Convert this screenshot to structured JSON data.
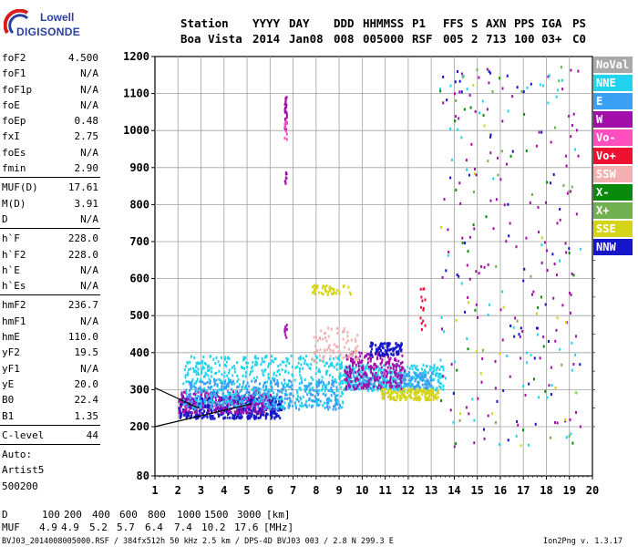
{
  "logo": {
    "top": "Lowell",
    "bottom": "DIGISONDE"
  },
  "header": {
    "row1": [
      "Station",
      "YYYY",
      "DAY",
      "DDD",
      "HHMMSS",
      "P1",
      "FFS",
      "S",
      "AXN",
      "PPS",
      "IGA",
      "PS"
    ],
    "row2": [
      "Boa Vista",
      "2014",
      "Jan08",
      "008",
      "005000",
      "RSF",
      "005",
      "2",
      "713",
      "100",
      "03+",
      "C0"
    ]
  },
  "params": {
    "group1": [
      {
        "k": "foF2",
        "v": "4.500"
      },
      {
        "k": "foF1",
        "v": "N/A"
      },
      {
        "k": "foF1p",
        "v": "N/A"
      },
      {
        "k": "foE",
        "v": "N/A"
      },
      {
        "k": "foEp",
        "v": "0.48"
      },
      {
        "k": "fxI",
        "v": "2.75"
      },
      {
        "k": "foEs",
        "v": "N/A"
      },
      {
        "k": "fmin",
        "v": "2.90"
      }
    ],
    "group2": [
      {
        "k": "MUF(D)",
        "v": "17.61"
      },
      {
        "k": "M(D)",
        "v": "3.91"
      },
      {
        "k": "D",
        "v": "N/A"
      }
    ],
    "group3": [
      {
        "k": "h`F",
        "v": "228.0"
      },
      {
        "k": "h`F2",
        "v": "228.0"
      },
      {
        "k": "h`E",
        "v": "N/A"
      },
      {
        "k": "h`Es",
        "v": "N/A"
      }
    ],
    "group4": [
      {
        "k": "hmF2",
        "v": "236.7"
      },
      {
        "k": "hmF1",
        "v": "N/A"
      },
      {
        "k": "hmE",
        "v": "110.0"
      },
      {
        "k": "yF2",
        "v": "19.5"
      },
      {
        "k": "yF1",
        "v": "N/A"
      },
      {
        "k": "yE",
        "v": "20.0"
      },
      {
        "k": "B0",
        "v": "22.4"
      },
      {
        "k": "B1",
        "v": "1.35"
      }
    ],
    "group5": [
      {
        "k": "C-level",
        "v": "44"
      }
    ],
    "auto": [
      "Auto:",
      "Artist5",
      "500200"
    ]
  },
  "legend": [
    {
      "label": "NoVal",
      "color": "#a9a9a9"
    },
    {
      "label": "NNE",
      "color": "#22d3ee"
    },
    {
      "label": "E",
      "color": "#3aa0f5"
    },
    {
      "label": "W",
      "color": "#a10fa8"
    },
    {
      "label": "Vo-",
      "color": "#ff4fbf"
    },
    {
      "label": "Vo+",
      "color": "#ee1030"
    },
    {
      "label": "SSW",
      "color": "#f2b0b0"
    },
    {
      "label": "X-",
      "color": "#0a8a0a"
    },
    {
      "label": "X+",
      "color": "#70b050"
    },
    {
      "label": "SSE",
      "color": "#d4d418"
    },
    {
      "label": "NNW",
      "color": "#1616c8"
    }
  ],
  "footer": {
    "d_label": "D",
    "d_values": [
      "100",
      "200",
      "400",
      "600",
      "800",
      "1000",
      "1500",
      "3000",
      "[km]"
    ],
    "muf_label": "MUF",
    "muf_values": [
      "4.9",
      "4.9",
      "5.2",
      "5.7",
      "6.4",
      "7.4",
      "10.2",
      "17.6",
      "[MHz]"
    ],
    "info": "BVJ03_2014008005000.RSF / 384fx512h 50 kHz 2.5 km / DPS-4D BVJ03 003 / 2.8 N 299.3 E",
    "version": "Ion2Png v. 1.3.17"
  },
  "chart_data": {
    "type": "scatter",
    "x_ticks": [
      "1",
      "2",
      "3",
      "4",
      "5",
      "6",
      "7",
      "8",
      "9",
      "10",
      "11",
      "12",
      "13",
      "14",
      "15",
      "16",
      "17",
      "18",
      "19",
      "20"
    ],
    "y_ticks": [
      "80",
      "200",
      "300",
      "400",
      "500",
      "600",
      "700",
      "800",
      "900",
      "1000",
      "1100",
      "1200"
    ],
    "xlim": [
      1,
      20
    ],
    "ylim": [
      80,
      1200
    ],
    "grid": true,
    "legend_position": "right",
    "clusters": [
      {
        "name": "NNW",
        "x": [
          2.0,
          6.5
        ],
        "y": [
          225,
          285
        ],
        "n": 480
      },
      {
        "name": "W",
        "x": [
          2.0,
          6.0
        ],
        "y": [
          240,
          300
        ],
        "n": 260
      },
      {
        "name": "NNE",
        "x": [
          2.2,
          9.2
        ],
        "y": [
          255,
          395
        ],
        "n": 520
      },
      {
        "name": "E",
        "x": [
          2.3,
          9.0
        ],
        "y": [
          250,
          330
        ],
        "n": 320
      },
      {
        "name": "NNE",
        "x": [
          9.0,
          13.5
        ],
        "y": [
          300,
          370
        ],
        "n": 360
      },
      {
        "name": "E",
        "x": [
          9.3,
          13.0
        ],
        "y": [
          305,
          350
        ],
        "n": 200
      },
      {
        "name": "W",
        "x": [
          9.2,
          11.8
        ],
        "y": [
          305,
          405
        ],
        "n": 240
      },
      {
        "name": "NNW",
        "x": [
          10.3,
          11.7
        ],
        "y": [
          395,
          430
        ],
        "n": 90
      },
      {
        "name": "SSE",
        "x": [
          10.8,
          13.3
        ],
        "y": [
          275,
          305
        ],
        "n": 170
      },
      {
        "name": "SSW",
        "x": [
          7.8,
          9.8
        ],
        "y": [
          380,
          470
        ],
        "n": 80
      },
      {
        "name": "SSE",
        "x": [
          7.8,
          9.5
        ],
        "y": [
          560,
          585
        ],
        "n": 45
      },
      {
        "name": "Vo+",
        "x": [
          12.5,
          12.7
        ],
        "y": [
          460,
          580
        ],
        "n": 14
      },
      {
        "name": "W",
        "x": [
          6.6,
          6.7
        ],
        "y": [
          1000,
          1095
        ],
        "n": 30
      },
      {
        "name": "Vo-",
        "x": [
          6.6,
          6.7
        ],
        "y": [
          960,
          1050
        ],
        "n": 12
      },
      {
        "name": "W",
        "x": [
          6.6,
          6.7
        ],
        "y": [
          860,
          890
        ],
        "n": 8
      },
      {
        "name": "W",
        "x": [
          6.6,
          6.7
        ],
        "y": [
          440,
          500
        ],
        "n": 10
      },
      {
        "name": "W",
        "x": [
          13.3,
          19.5
        ],
        "y": [
          150,
          1180
        ],
        "n": 130
      },
      {
        "name": "NNE",
        "x": [
          13.3,
          19.5
        ],
        "y": [
          150,
          1180
        ],
        "n": 60
      },
      {
        "name": "X-",
        "x": [
          13.3,
          19.5
        ],
        "y": [
          150,
          1180
        ],
        "n": 30
      },
      {
        "name": "X+",
        "x": [
          13.3,
          19.5
        ],
        "y": [
          150,
          1180
        ],
        "n": 25
      },
      {
        "name": "NNW",
        "x": [
          13.3,
          19.5
        ],
        "y": [
          150,
          1180
        ],
        "n": 50
      },
      {
        "name": "SSE",
        "x": [
          13.3,
          19.5
        ],
        "y": [
          150,
          1180
        ],
        "n": 20
      }
    ],
    "fit_lines": [
      {
        "points": [
          [
            1,
            200
          ],
          [
            5.2,
            262
          ]
        ]
      },
      {
        "points": [
          [
            1,
            305
          ],
          [
            2.9,
            250
          ]
        ]
      }
    ]
  }
}
